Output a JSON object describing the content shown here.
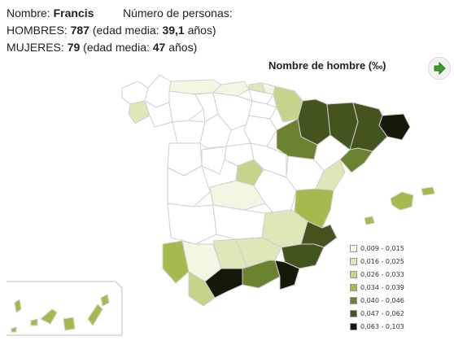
{
  "header": {
    "name_label": "Nombre:",
    "name_value": "Francis",
    "persons_label": "Número de personas:",
    "men_label": "HOMBRES:",
    "men_count": "787",
    "men_age_prefix": "(edad media:",
    "men_age": "39,1",
    "men_age_suffix": "años)",
    "women_label": "MUJERES:",
    "women_count": "79",
    "women_age_prefix": "(edad media:",
    "women_age": "47",
    "women_age_suffix": "años)"
  },
  "map": {
    "title": "Nombre de hombre (‰)",
    "next_icon": "green-arrow-right-icon",
    "legend": [
      {
        "label": "0,009 - 0,015",
        "color": "#f4f6e4"
      },
      {
        "label": "0,016 - 0,025",
        "color": "#dde7b8"
      },
      {
        "label": "0,026 - 0,033",
        "color": "#c3d58b"
      },
      {
        "label": "0,034 - 0,039",
        "color": "#a2bb4c"
      },
      {
        "label": "0,040 - 0,046",
        "color": "#6b8230"
      },
      {
        "label": "0,047 - 0,062",
        "color": "#43541e"
      },
      {
        "label": "0,063 - 0,103",
        "color": "#151a08"
      }
    ],
    "colors": {
      "empty": "#ffffff",
      "border": "#cfcfcf"
    }
  }
}
